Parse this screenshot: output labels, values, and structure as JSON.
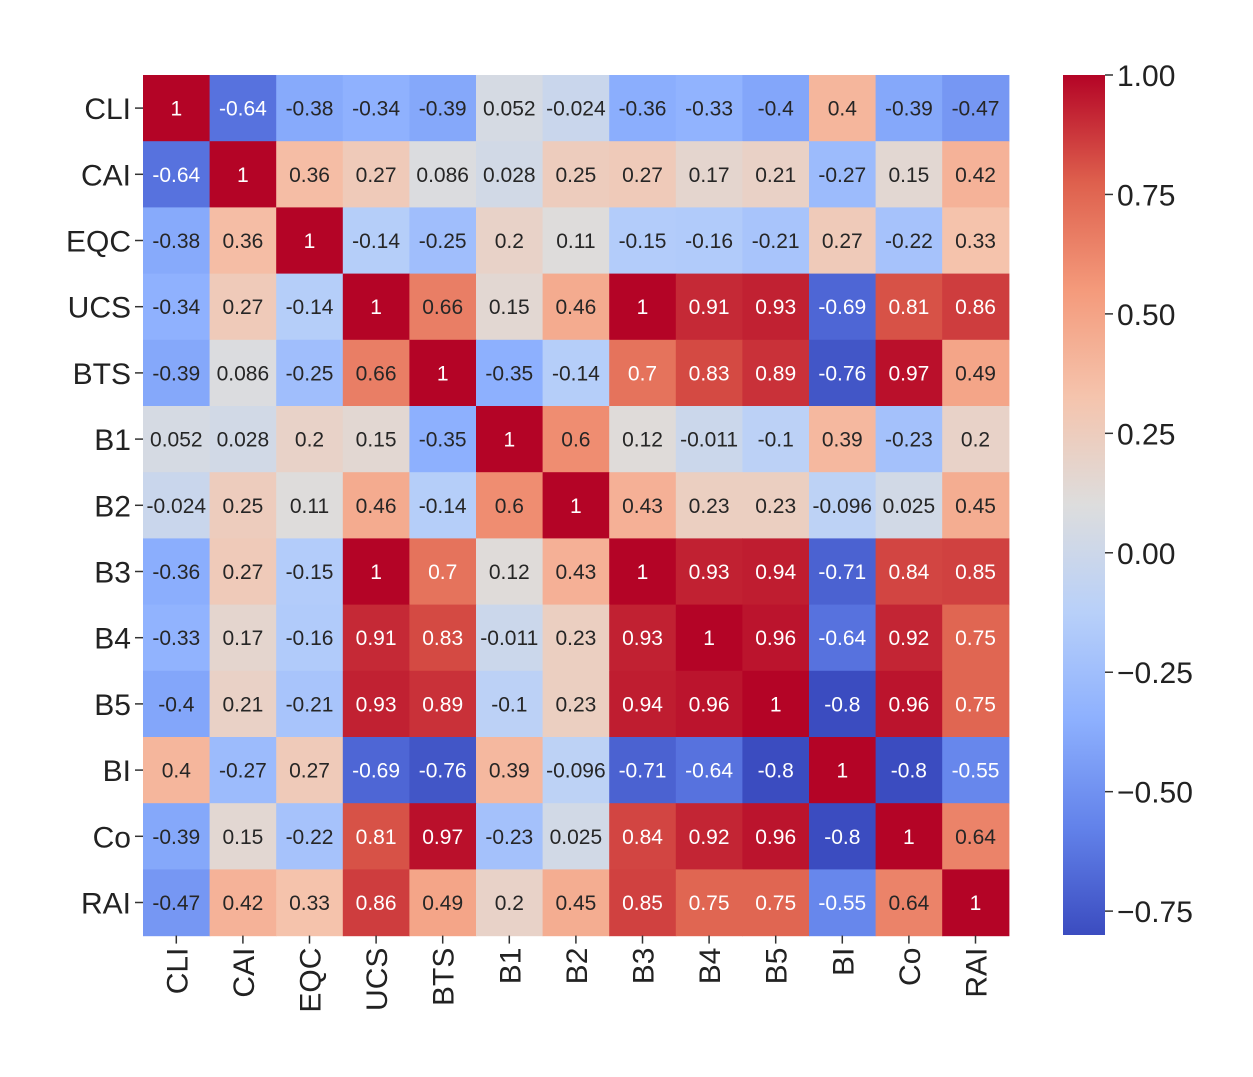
{
  "chart_data": {
    "type": "heatmap",
    "colormap": "coolwarm",
    "labels": [
      "CLI",
      "CAI",
      "EQC",
      "UCS",
      "BTS",
      "B1",
      "B2",
      "B3",
      "B4",
      "B5",
      "BI",
      "Co",
      "RAI"
    ],
    "values": [
      [
        1,
        -0.64,
        -0.38,
        -0.34,
        -0.39,
        0.052,
        -0.024,
        -0.36,
        -0.33,
        -0.4,
        0.4,
        -0.39,
        -0.47
      ],
      [
        -0.64,
        1,
        0.36,
        0.27,
        0.086,
        0.028,
        0.25,
        0.27,
        0.17,
        0.21,
        -0.27,
        0.15,
        0.42
      ],
      [
        -0.38,
        0.36,
        1,
        -0.14,
        -0.25,
        0.2,
        0.11,
        -0.15,
        -0.16,
        -0.21,
        0.27,
        -0.22,
        0.33
      ],
      [
        -0.34,
        0.27,
        -0.14,
        1,
        0.66,
        0.15,
        0.46,
        1,
        0.91,
        0.93,
        -0.69,
        0.81,
        0.86
      ],
      [
        -0.39,
        0.086,
        -0.25,
        0.66,
        1,
        -0.35,
        -0.14,
        0.7,
        0.83,
        0.89,
        -0.76,
        0.97,
        0.49
      ],
      [
        0.052,
        0.028,
        0.2,
        0.15,
        -0.35,
        1,
        0.6,
        0.12,
        -0.011,
        -0.1,
        0.39,
        -0.23,
        0.2
      ],
      [
        -0.024,
        0.25,
        0.11,
        0.46,
        -0.14,
        0.6,
        1,
        0.43,
        0.23,
        0.23,
        -0.096,
        0.025,
        0.45
      ],
      [
        -0.36,
        0.27,
        -0.15,
        1,
        0.7,
        0.12,
        0.43,
        1,
        0.93,
        0.94,
        -0.71,
        0.84,
        0.85
      ],
      [
        -0.33,
        0.17,
        -0.16,
        0.91,
        0.83,
        -0.011,
        0.23,
        0.93,
        1,
        0.96,
        -0.64,
        0.92,
        0.75
      ],
      [
        -0.4,
        0.21,
        -0.21,
        0.93,
        0.89,
        -0.1,
        0.23,
        0.94,
        0.96,
        1,
        -0.8,
        0.96,
        0.75
      ],
      [
        0.4,
        -0.27,
        0.27,
        -0.69,
        -0.76,
        0.39,
        -0.096,
        -0.71,
        -0.64,
        -0.8,
        1,
        -0.8,
        -0.55
      ],
      [
        -0.39,
        0.15,
        -0.22,
        0.81,
        0.97,
        -0.23,
        0.025,
        0.84,
        0.92,
        0.96,
        -0.8,
        1,
        0.64
      ],
      [
        -0.47,
        0.42,
        0.33,
        0.86,
        0.49,
        0.2,
        0.45,
        0.85,
        0.75,
        0.75,
        -0.55,
        0.64,
        1
      ]
    ],
    "vmin": -0.8,
    "vmax": 1.0,
    "colorbar_ticks": [
      1.0,
      0.75,
      0.5,
      0.25,
      0.0,
      -0.25,
      -0.5,
      -0.75
    ],
    "colorbar_tick_labels": [
      "1.00",
      "0.75",
      "0.50",
      "0.25",
      "0.00",
      "−0.25",
      "−0.50",
      "−0.75"
    ],
    "annotated": true,
    "title": "",
    "xlabel": "",
    "ylabel": ""
  }
}
